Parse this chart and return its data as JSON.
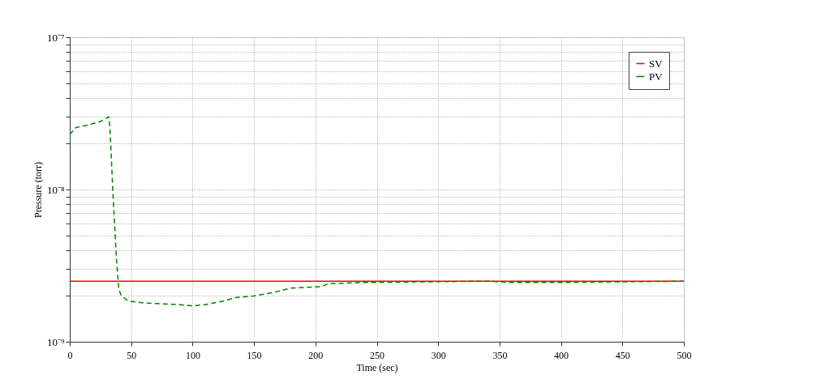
{
  "chart_data": {
    "type": "line",
    "xlabel": "Time (sec)",
    "ylabel": "Pressure (torr)",
    "log": "y",
    "xlim": [
      0,
      500
    ],
    "xticks": [
      0,
      50,
      100,
      150,
      200,
      250,
      300,
      350,
      400,
      450,
      500
    ],
    "ylim": [
      1e-09,
      1e-07
    ],
    "yticks": [
      {
        "value": 1e-09,
        "label": "10⁻⁹"
      },
      {
        "value": 2e-09,
        "label": null
      },
      {
        "value": 3e-09,
        "label": null
      },
      {
        "value": 4e-09,
        "label": null
      },
      {
        "value": 5e-09,
        "label": null
      },
      {
        "value": 6e-09,
        "label": null
      },
      {
        "value": 7e-09,
        "label": null
      },
      {
        "value": 8e-09,
        "label": null
      },
      {
        "value": 9e-09,
        "label": null
      },
      {
        "value": 1e-08,
        "label": "10⁻⁸"
      },
      {
        "value": 2e-08,
        "label": null
      },
      {
        "value": 3e-08,
        "label": null
      },
      {
        "value": 4e-08,
        "label": null
      },
      {
        "value": 5e-08,
        "label": null
      },
      {
        "value": 6e-08,
        "label": null
      },
      {
        "value": 7e-08,
        "label": null
      },
      {
        "value": 8e-08,
        "label": null
      },
      {
        "value": 9e-08,
        "label": null
      },
      {
        "value": 1e-07,
        "label": "10⁻⁷"
      }
    ],
    "grid": true,
    "legend": "top right",
    "marker": "none",
    "series": [
      {
        "name": "SV",
        "color": "#ff0000",
        "line_style": "solid",
        "x": [
          0,
          500
        ],
        "values": [
          2.5e-09,
          2.5e-09
        ]
      },
      {
        "name": "PV",
        "color": "#008000",
        "line_style": "dashed",
        "x": [
          0,
          5,
          15,
          25,
          32,
          33,
          35,
          37,
          38,
          40,
          42,
          48,
          60,
          90,
          100,
          110,
          125,
          135,
          150,
          165,
          180,
          205,
          210,
          237,
          340,
          360,
          395,
          500
        ],
        "values": [
          2.3e-08,
          2.55e-08,
          2.65e-08,
          2.8e-08,
          3e-08,
          2.3e-08,
          1e-08,
          5e-09,
          3.5e-09,
          2.2e-09,
          2e-09,
          1.85e-09,
          1.8e-09,
          1.75e-09,
          1.72e-09,
          1.75e-09,
          1.85e-09,
          1.95e-09,
          2e-09,
          2.1e-09,
          2.25e-09,
          2.3e-09,
          2.4e-09,
          2.45e-09,
          2.5e-09,
          2.45e-09,
          2.45e-09,
          2.5e-09
        ]
      }
    ]
  }
}
